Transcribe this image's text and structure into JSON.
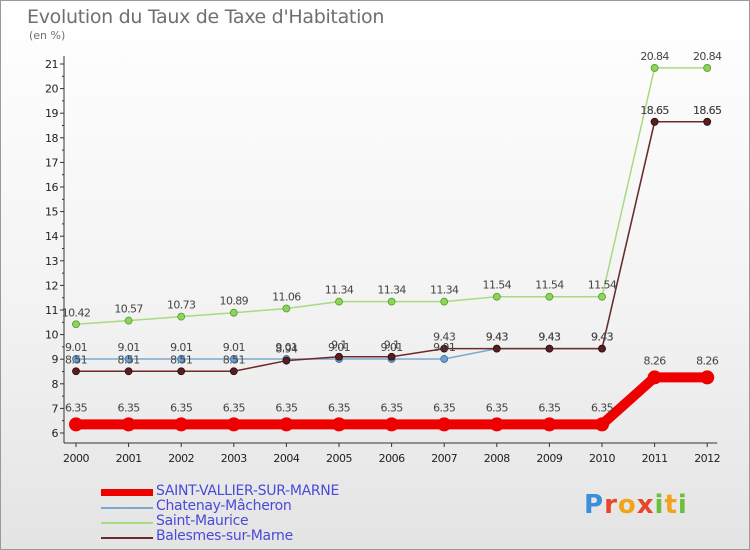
{
  "title": "Evolution du Taux de Taxe d'Habitation",
  "subtitle": "(en %)",
  "logo_text": "Proxiti",
  "chart_data": {
    "type": "line",
    "x": [
      "2000",
      "2001",
      "2002",
      "2003",
      "2004",
      "2005",
      "2006",
      "2007",
      "2008",
      "2009",
      "2010",
      "2011",
      "2012"
    ],
    "ylim": [
      6,
      21
    ],
    "yticks": [
      6,
      7,
      8,
      9,
      10,
      11,
      12,
      13,
      14,
      15,
      16,
      17,
      18,
      19,
      20,
      21
    ],
    "grid": false,
    "legend_position": "bottom-left",
    "series": [
      {
        "name": "SAINT-VALLIER-SUR-MARNE",
        "color": "#ee0000",
        "values": [
          6.35,
          6.35,
          6.35,
          6.35,
          6.35,
          6.35,
          6.35,
          6.35,
          6.35,
          6.35,
          6.35,
          8.26,
          8.26
        ],
        "labels": [
          "6.35",
          "6.35",
          "6.35",
          "6.35",
          "6.35",
          "6.35",
          "6.35",
          "6.35",
          "6.35",
          "6.35",
          "6.35",
          "8.26",
          "8.26"
        ]
      },
      {
        "name": "Chatenay-Mâcheron",
        "color": "#7aaad0",
        "values": [
          9.01,
          9.01,
          9.01,
          9.01,
          9.01,
          9.01,
          9.01,
          9.01,
          9.43,
          9.43,
          9.43,
          18.65,
          18.65
        ],
        "labels": [
          "9.01",
          "9.01",
          "9.01",
          "9.01",
          "9.01",
          "9.01",
          "9.01",
          "9.01",
          "9.43",
          "9.43",
          "9.43",
          "18.65",
          "18.65"
        ]
      },
      {
        "name": "Saint-Maurice",
        "color": "#a6db80",
        "values": [
          10.42,
          10.57,
          10.73,
          10.89,
          11.06,
          11.34,
          11.34,
          11.34,
          11.54,
          11.54,
          11.54,
          20.84,
          20.84
        ],
        "labels": [
          "10.42",
          "10.57",
          "10.73",
          "10.89",
          "11.06",
          "11.34",
          "11.34",
          "11.34",
          "11.54",
          "11.54",
          "11.54",
          "20.84",
          "20.84"
        ]
      },
      {
        "name": "Balesmes-sur-Marne",
        "color": "#6e2a2a",
        "values": [
          8.51,
          8.51,
          8.51,
          8.51,
          8.94,
          9.1,
          9.1,
          9.43,
          9.43,
          9.43,
          9.43,
          18.65,
          18.65
        ],
        "labels": [
          "8.51",
          "8.51",
          "8.51",
          "8.51",
          "8.94",
          "9.1",
          "9.1",
          "9.43",
          "9.43",
          "9.43",
          "9.43",
          "18.65",
          "18.65"
        ]
      }
    ]
  }
}
